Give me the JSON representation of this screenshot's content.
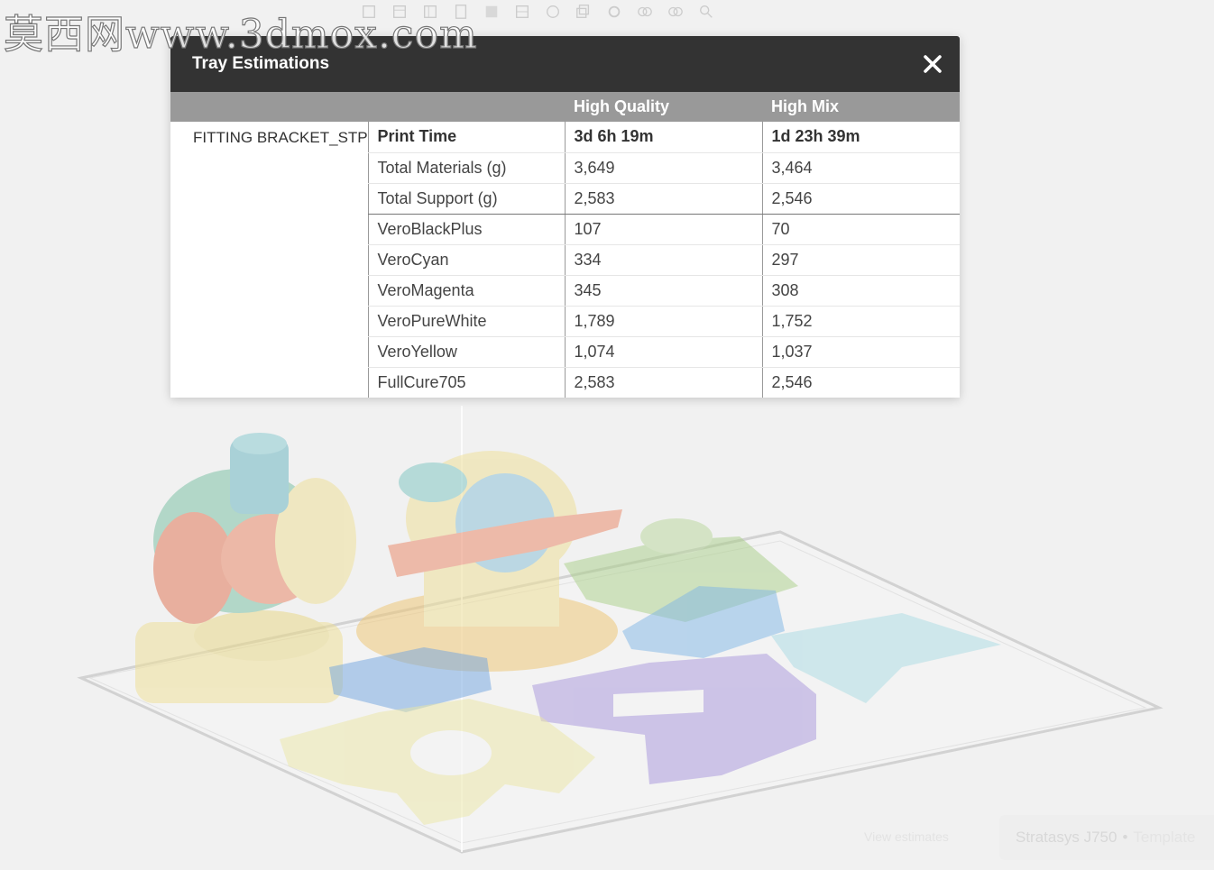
{
  "watermark": "莫西网www.3dmox.com",
  "toolbar": {
    "icons": [
      "cube-icon",
      "cube-icon",
      "cube-icon",
      "cube-icon",
      "cube-icon",
      "cube-icon",
      "rotate-icon",
      "copy-icon",
      "settings-icon",
      "group-icon",
      "group-icon",
      "search-icon"
    ]
  },
  "dialog": {
    "title": "Tray Estimations",
    "close_icon": "close-icon",
    "columns": [
      "",
      "",
      "High Quality",
      "High Mix"
    ],
    "part_name": "FITTING BRACKET_STP",
    "rows": [
      {
        "label": "Print Time",
        "high_quality": "3d 6h 19m",
        "high_mix": "1d 23h 39m"
      },
      {
        "label": "Total Materials (g)",
        "high_quality": "3,649",
        "high_mix": "3,464"
      },
      {
        "label": "Total Support (g)",
        "high_quality": "2,583",
        "high_mix": "2,546"
      },
      {
        "label": "VeroBlackPlus",
        "high_quality": "107",
        "high_mix": "70"
      },
      {
        "label": "VeroCyan",
        "high_quality": "334",
        "high_mix": "297"
      },
      {
        "label": "VeroMagenta",
        "high_quality": "345",
        "high_mix": "308"
      },
      {
        "label": "VeroPureWhite",
        "high_quality": "1,789",
        "high_mix": "1,752"
      },
      {
        "label": "VeroYellow",
        "high_quality": "1,074",
        "high_mix": "1,037"
      },
      {
        "label": "FullCure705",
        "high_quality": "2,583",
        "high_mix": "2,546"
      }
    ]
  },
  "status": {
    "view_estimates": "View estimates",
    "printer": "Stratasys J750",
    "separator": "•",
    "template": "Template"
  }
}
